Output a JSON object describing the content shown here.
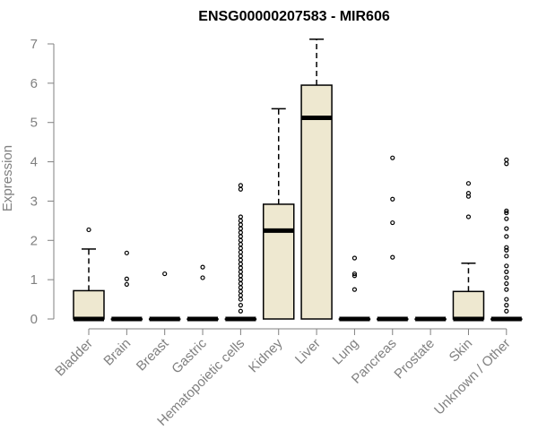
{
  "chart_data": {
    "type": "boxplot",
    "title": "ENSG00000207583 - MIR606",
    "ylabel": "Expression",
    "ylim": [
      0,
      7
    ],
    "yticks": [
      0,
      1,
      2,
      3,
      4,
      5,
      6,
      7
    ],
    "grid": false,
    "categories": [
      "Bladder",
      "Brain",
      "Breast",
      "Gastric",
      "Hematopoietic cells",
      "Kidney",
      "Liver",
      "Lung",
      "Pancreas",
      "Prostate",
      "Skin",
      "Unknown / Other"
    ],
    "boxes": [
      {
        "min": 0,
        "q1": 0,
        "median": 0,
        "q3": 0.72,
        "max": 1.78,
        "outliers": [
          2.27
        ]
      },
      {
        "min": 0,
        "q1": 0,
        "median": 0,
        "q3": 0,
        "max": 0,
        "outliers": [
          0.88,
          1.02,
          1.68
        ]
      },
      {
        "min": 0,
        "q1": 0,
        "median": 0,
        "q3": 0,
        "max": 0,
        "outliers": [
          1.15
        ]
      },
      {
        "min": 0,
        "q1": 0,
        "median": 0,
        "q3": 0,
        "max": 0,
        "outliers": [
          1.05,
          1.32
        ]
      },
      {
        "min": 0,
        "q1": 0,
        "median": 0,
        "q3": 0,
        "max": 0,
        "outliers": [
          0.2,
          0.35,
          0.5,
          0.6,
          0.7,
          0.8,
          0.9,
          1.0,
          1.1,
          1.2,
          1.3,
          1.4,
          1.5,
          1.6,
          1.7,
          1.8,
          1.9,
          2.0,
          2.1,
          2.2,
          2.3,
          2.4,
          2.5,
          2.6,
          3.3,
          3.4
        ]
      },
      {
        "min": 0,
        "q1": 0,
        "median": 2.25,
        "q3": 2.92,
        "max": 5.35,
        "outliers": []
      },
      {
        "min": 0,
        "q1": 0,
        "median": 5.12,
        "q3": 5.95,
        "max": 7.12,
        "outliers": []
      },
      {
        "min": 0,
        "q1": 0,
        "median": 0,
        "q3": 0,
        "max": 0,
        "outliers": [
          0.75,
          1.1,
          1.15,
          1.55
        ]
      },
      {
        "min": 0,
        "q1": 0,
        "median": 0,
        "q3": 0,
        "max": 0,
        "outliers": [
          1.57,
          2.45,
          3.05,
          4.1
        ]
      },
      {
        "min": 0,
        "q1": 0,
        "median": 0,
        "q3": 0,
        "max": 0,
        "outliers": []
      },
      {
        "min": 0,
        "q1": 0,
        "median": 0,
        "q3": 0.7,
        "max": 1.42,
        "outliers": [
          2.6,
          3.12,
          3.2,
          3.45
        ]
      },
      {
        "min": 0,
        "q1": 0,
        "median": 0,
        "q3": 0,
        "max": 0,
        "outliers": [
          0.2,
          0.35,
          0.5,
          0.75,
          0.9,
          1.05,
          1.2,
          1.35,
          1.6,
          1.75,
          1.82,
          2.1,
          2.3,
          2.55,
          2.7,
          2.75,
          3.95,
          4.05
        ]
      }
    ],
    "colors": {
      "box_fill": "#EEE8D0",
      "box_stroke": "#000000",
      "axis": "#808080"
    }
  }
}
